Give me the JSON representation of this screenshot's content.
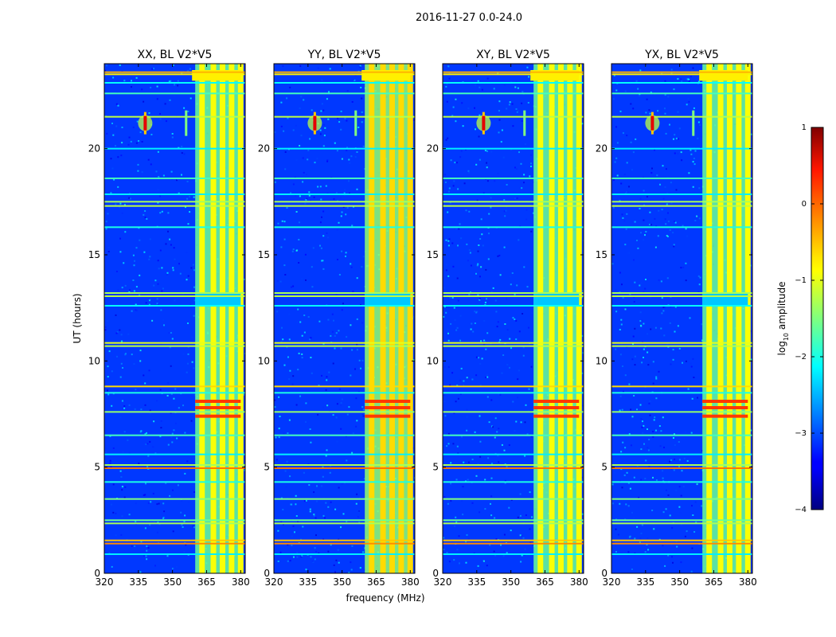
{
  "figure": {
    "suptitle": "2016-11-27 0.0-24.0",
    "xlabel": "frequency (MHz)",
    "ylabel": "UT (hours)"
  },
  "chart_data": {
    "type": "heatmap",
    "title": "2016-11-27 0.0-24.0",
    "xlabel": "frequency (MHz)",
    "ylabel": "UT (hours)",
    "xlim": [
      320,
      382
    ],
    "ylim": [
      0,
      24
    ],
    "xticks": [
      320,
      335,
      350,
      365,
      380
    ],
    "yticks": [
      0,
      5,
      10,
      15,
      20
    ],
    "panels": [
      {
        "title": "XX, BL V2*V5",
        "polarization": "XX"
      },
      {
        "title": "YY, BL V2*V5",
        "polarization": "YY"
      },
      {
        "title": "XY, BL V2*V5",
        "polarization": "XY"
      },
      {
        "title": "YX, BL V2*V5",
        "polarization": "YX"
      }
    ],
    "colorbar": {
      "label": "log10 amplitude",
      "label_base": "log",
      "label_sub": "10",
      "label_rest": " amplitude",
      "colormap": "jet",
      "range": [
        -4,
        1
      ],
      "ticks": [
        1,
        0,
        -1,
        -2,
        -3,
        -4
      ],
      "tick_labels": [
        "1",
        "0",
        "−1",
        "−2",
        "−3",
        "−4"
      ]
    },
    "features": {
      "rfi_band_mhz": [
        360,
        380
      ],
      "rfi_band_levels": {
        "XX": -1.2,
        "YY": -1.0,
        "XY": -1.2,
        "YX": -1.2
      },
      "rfi_channels_mhz": [
        363,
        368,
        372,
        376,
        380
      ],
      "broadband_hours": [
        0.9,
        1.4,
        1.55,
        2.35,
        2.5,
        3.5,
        4.3,
        4.95,
        5.1,
        5.6,
        6.5,
        7.6,
        8.5,
        8.8,
        10.7,
        10.85,
        12.6,
        13.05,
        13.2,
        16.3,
        17.3,
        17.5,
        17.85,
        18.6,
        20.0,
        21.5,
        22.6,
        23.1,
        23.5,
        23.6
      ],
      "broadband_levels": [
        -2.2,
        -0.3,
        -0.6,
        -1.3,
        -1.6,
        -1.5,
        -2.0,
        -0.2,
        -1.3,
        -2.2,
        -1.8,
        -1.4,
        -2.0,
        -0.7,
        -1.2,
        -1.0,
        -2.1,
        -1.2,
        -1.3,
        -2.0,
        -1.2,
        -1.3,
        -2.2,
        -1.8,
        -2.2,
        -1.2,
        -1.8,
        -2.1,
        -0.8,
        -0.5
      ],
      "transient_source": {
        "freq_mhz": 338,
        "time_hours": 21.2,
        "level": 0.5
      },
      "faint_streak": {
        "freq_mhz": 356,
        "time_hours": [
          20.6,
          21.8
        ],
        "level": -1.5
      },
      "band_gap_hours": [
        12.6,
        13.2
      ]
    }
  }
}
